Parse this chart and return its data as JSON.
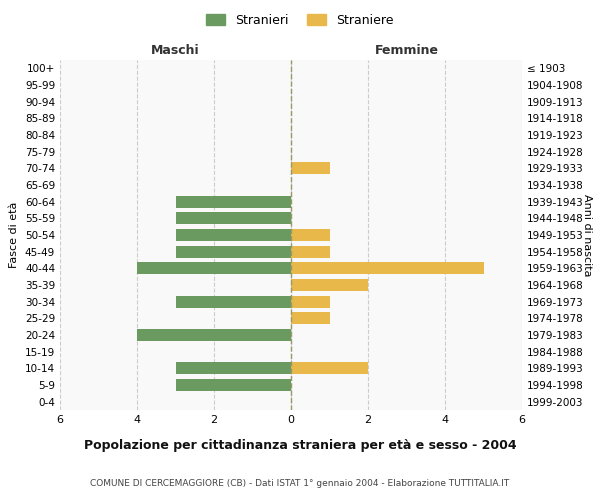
{
  "age_groups": [
    "100+",
    "95-99",
    "90-94",
    "85-89",
    "80-84",
    "75-79",
    "70-74",
    "65-69",
    "60-64",
    "55-59",
    "50-54",
    "45-49",
    "40-44",
    "35-39",
    "30-34",
    "25-29",
    "20-24",
    "15-19",
    "10-14",
    "5-9",
    "0-4"
  ],
  "birth_years": [
    "≤ 1903",
    "1904-1908",
    "1909-1913",
    "1914-1918",
    "1919-1923",
    "1924-1928",
    "1929-1933",
    "1934-1938",
    "1939-1943",
    "1944-1948",
    "1949-1953",
    "1954-1958",
    "1959-1963",
    "1964-1968",
    "1969-1973",
    "1974-1978",
    "1979-1983",
    "1984-1988",
    "1989-1993",
    "1994-1998",
    "1999-2003"
  ],
  "maschi": [
    0,
    0,
    0,
    0,
    0,
    0,
    0,
    0,
    3,
    3,
    3,
    3,
    4,
    0,
    3,
    0,
    4,
    0,
    3,
    3,
    0
  ],
  "femmine": [
    0,
    0,
    0,
    0,
    0,
    0,
    1,
    0,
    0,
    0,
    1,
    1,
    5,
    2,
    1,
    1,
    0,
    0,
    2,
    0,
    0
  ],
  "male_color": "#6a9a5f",
  "female_color": "#e8b84b",
  "grid_color": "#cccccc",
  "center_line_color": "#999966",
  "title": "Popolazione per cittadinanza straniera per età e sesso - 2004",
  "subtitle": "COMUNE DI CERCEMAGGIORE (CB) - Dati ISTAT 1° gennaio 2004 - Elaborazione TUTTITALIA.IT",
  "xlabel_left": "Maschi",
  "xlabel_right": "Femmine",
  "ylabel_left": "Fasce di età",
  "ylabel_right": "Anni di nascita",
  "legend_male": "Stranieri",
  "legend_female": "Straniere",
  "xlim": 6,
  "bg_color": "#ffffff",
  "plot_bg_color": "#f9f9f9"
}
